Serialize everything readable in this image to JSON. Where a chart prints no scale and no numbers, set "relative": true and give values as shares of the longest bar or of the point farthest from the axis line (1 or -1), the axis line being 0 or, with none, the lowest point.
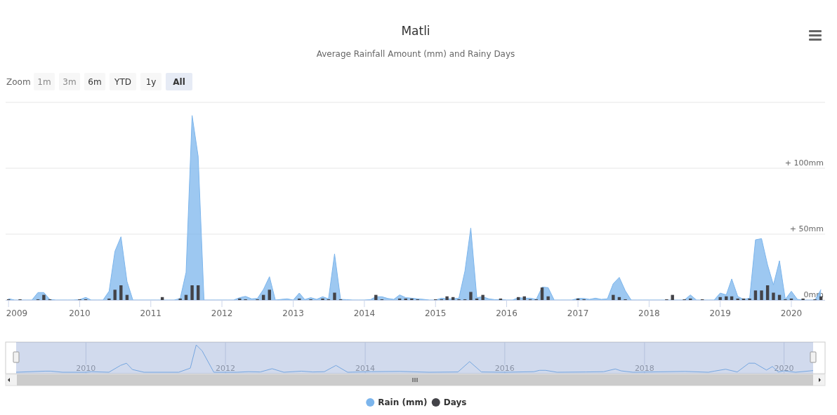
{
  "chart_data": [
    {
      "type": "area",
      "title": "Matli",
      "subtitle": "Average Rainfall Amount (mm) and Rainy Days",
      "annotations": [
        "Zoom",
        "1m",
        "3m",
        "6m",
        "YTD",
        "1y",
        "All"
      ],
      "x": [
        "2009-01",
        "2009-02",
        "2009-03",
        "2009-04",
        "2009-05",
        "2009-06",
        "2009-07",
        "2009-08",
        "2009-09",
        "2009-10",
        "2009-11",
        "2009-12",
        "2010-01",
        "2010-02",
        "2010-03",
        "2010-04",
        "2010-05",
        "2010-06",
        "2010-07",
        "2010-08",
        "2010-09",
        "2010-10",
        "2010-11",
        "2010-12",
        "2011-01",
        "2011-02",
        "2011-03",
        "2011-04",
        "2011-05",
        "2011-06",
        "2011-07",
        "2011-08",
        "2011-09",
        "2011-10",
        "2011-11",
        "2011-12",
        "2012-01",
        "2012-02",
        "2012-03",
        "2012-04",
        "2012-05",
        "2012-06",
        "2012-07",
        "2012-08",
        "2012-09",
        "2012-10",
        "2012-11",
        "2012-12",
        "2013-01",
        "2013-02",
        "2013-03",
        "2013-04",
        "2013-05",
        "2013-06",
        "2013-07",
        "2013-08",
        "2013-09",
        "2013-10",
        "2013-11",
        "2013-12",
        "2014-01",
        "2014-02",
        "2014-03",
        "2014-04",
        "2014-05",
        "2014-06",
        "2014-07",
        "2014-08",
        "2014-09",
        "2014-10",
        "2014-11",
        "2014-12",
        "2015-01",
        "2015-02",
        "2015-03",
        "2015-04",
        "2015-05",
        "2015-06",
        "2015-07",
        "2015-08",
        "2015-09",
        "2015-10",
        "2015-11",
        "2015-12",
        "2016-01",
        "2016-02",
        "2016-03",
        "2016-04",
        "2016-05",
        "2016-06",
        "2016-07",
        "2016-08",
        "2016-09",
        "2016-10",
        "2016-11",
        "2016-12",
        "2017-01",
        "2017-02",
        "2017-03",
        "2017-04",
        "2017-05",
        "2017-06",
        "2017-07",
        "2017-08",
        "2017-09",
        "2017-10",
        "2017-11",
        "2017-12",
        "2018-01",
        "2018-02",
        "2018-03",
        "2018-04",
        "2018-05",
        "2018-06",
        "2018-07",
        "2018-08",
        "2018-09",
        "2018-10",
        "2018-11",
        "2018-12",
        "2019-01",
        "2019-02",
        "2019-03",
        "2019-04",
        "2019-05",
        "2019-06",
        "2019-07",
        "2019-08",
        "2019-09",
        "2019-10",
        "2019-11",
        "2019-12",
        "2020-01",
        "2020-02",
        "2020-03",
        "2020-04",
        "2020-05",
        "2020-06"
      ],
      "series": [
        {
          "name": "Rain (mm)",
          "type": "area",
          "color": "#7cb5ec",
          "values": [
            1,
            0,
            0,
            0,
            0,
            5.7,
            5.7,
            0.4,
            0,
            0,
            0,
            0,
            0.3,
            2,
            0,
            0,
            0,
            6.7,
            37,
            48,
            14,
            0,
            0,
            0,
            0,
            0,
            0,
            0,
            0,
            1.2,
            21,
            140,
            109,
            0,
            0,
            0,
            0,
            0,
            0,
            1.8,
            2.8,
            0.9,
            1.2,
            8,
            17.7,
            0,
            0.5,
            0.9,
            0,
            5.3,
            0.4,
            1.8,
            0.5,
            2.5,
            0.9,
            35,
            0.5,
            0.3,
            0,
            0,
            0,
            0.3,
            2.5,
            2.5,
            1.2,
            0.5,
            3.9,
            1.8,
            1.4,
            0.9,
            0.5,
            0,
            0,
            1.4,
            0.9,
            0.9,
            1.4,
            22,
            54.6,
            1.8,
            2.5,
            0.9,
            0.3,
            0.3,
            0,
            0,
            1.8,
            1.4,
            1.4,
            0.5,
            9.8,
            9.4,
            0,
            0,
            0,
            0,
            1.2,
            1.2,
            0.5,
            1.4,
            0.5,
            0.9,
            12.4,
            17.2,
            7,
            0,
            0,
            0,
            0,
            0,
            0,
            0,
            0,
            0,
            0,
            3.9,
            0,
            0,
            0,
            0,
            5.3,
            3.9,
            16,
            2.7,
            0.5,
            1.4,
            45.7,
            46.6,
            26.6,
            11.5,
            29.8,
            0.5,
            6.7,
            0.5,
            0,
            0,
            0,
            8
          ]
        }
      ],
      "xlim": [
        "2008-12-17",
        "2020-06-22"
      ],
      "xticks": [
        {
          "value": "2009-01",
          "label": "2009"
        },
        {
          "value": "2010-01",
          "label": "2010"
        },
        {
          "value": "2011-01",
          "label": "2011"
        },
        {
          "value": "2012-01",
          "label": "2012"
        },
        {
          "value": "2013-01",
          "label": "2013"
        },
        {
          "value": "2014-01",
          "label": "2014"
        },
        {
          "value": "2015-01",
          "label": "2015"
        },
        {
          "value": "2016-01",
          "label": "2016"
        },
        {
          "value": "2017-01",
          "label": "2017"
        },
        {
          "value": "2018-01",
          "label": "2018"
        },
        {
          "value": "2019-01",
          "label": "2019"
        },
        {
          "value": "2020-01",
          "label": "2020"
        }
      ],
      "ylim": [
        0,
        150
      ],
      "yticks": [
        {
          "value": 0,
          "label": "0mm"
        },
        {
          "value": 50,
          "label": "+ 50mm"
        },
        {
          "value": 100,
          "label": "+ 100mm"
        },
        {
          "value": 150,
          "label": null
        }
      ],
      "grid": "y",
      "legend": "bottom"
    },
    {
      "type": "bar",
      "relative": true,
      "legend": "bottom",
      "x": [
        "2009-01",
        "2009-02",
        "2009-03",
        "2009-04",
        "2009-05",
        "2009-06",
        "2009-07",
        "2009-08",
        "2009-09",
        "2009-10",
        "2009-11",
        "2009-12",
        "2010-01",
        "2010-02",
        "2010-03",
        "2010-04",
        "2010-05",
        "2010-06",
        "2010-07",
        "2010-08",
        "2010-09",
        "2010-10",
        "2010-11",
        "2010-12",
        "2011-01",
        "2011-02",
        "2011-03",
        "2011-04",
        "2011-05",
        "2011-06",
        "2011-07",
        "2011-08",
        "2011-09",
        "2011-10",
        "2011-11",
        "2011-12",
        "2012-01",
        "2012-02",
        "2012-03",
        "2012-04",
        "2012-05",
        "2012-06",
        "2012-07",
        "2012-08",
        "2012-09",
        "2012-10",
        "2012-11",
        "2012-12",
        "2013-01",
        "2013-02",
        "2013-03",
        "2013-04",
        "2013-05",
        "2013-06",
        "2013-07",
        "2013-08",
        "2013-09",
        "2013-10",
        "2013-11",
        "2013-12",
        "2014-01",
        "2014-02",
        "2014-03",
        "2014-04",
        "2014-05",
        "2014-06",
        "2014-07",
        "2014-08",
        "2014-09",
        "2014-10",
        "2014-11",
        "2014-12",
        "2015-01",
        "2015-02",
        "2015-03",
        "2015-04",
        "2015-05",
        "2015-06",
        "2015-07",
        "2015-08",
        "2015-09",
        "2015-10",
        "2015-11",
        "2015-12",
        "2016-01",
        "2016-02",
        "2016-03",
        "2016-04",
        "2016-05",
        "2016-06",
        "2016-07",
        "2016-08",
        "2016-09",
        "2016-10",
        "2016-11",
        "2016-12",
        "2017-01",
        "2017-02",
        "2017-03",
        "2017-04",
        "2017-05",
        "2017-06",
        "2017-07",
        "2017-08",
        "2017-09",
        "2017-10",
        "2017-11",
        "2017-12",
        "2018-01",
        "2018-02",
        "2018-03",
        "2018-04",
        "2018-05",
        "2018-06",
        "2018-07",
        "2018-08",
        "2018-09",
        "2018-10",
        "2018-11",
        "2018-12",
        "2019-01",
        "2019-02",
        "2019-03",
        "2019-04",
        "2019-05",
        "2019-06",
        "2019-07",
        "2019-08",
        "2019-09",
        "2019-10",
        "2019-11",
        "2019-12",
        "2020-01",
        "2020-02",
        "2020-03",
        "2020-04",
        "2020-05",
        "2020-06"
      ],
      "xlim": [
        "2008-12-17",
        "2020-06-22"
      ],
      "series": [
        {
          "name": "Days",
          "color": "#434348",
          "values": [
            0.05,
            0,
            0.05,
            0,
            0,
            0.05,
            0.35,
            0.05,
            0,
            0,
            0,
            0,
            0.05,
            0.05,
            0,
            0,
            0,
            0.1,
            0.7,
            1,
            0.35,
            0,
            0,
            0,
            0,
            0,
            0.2,
            0,
            0,
            0.1,
            0.35,
            1,
            1,
            0,
            0,
            0,
            0,
            0,
            0,
            0.1,
            0.05,
            0,
            0.05,
            0.35,
            0.7,
            0,
            0,
            0,
            0,
            0.1,
            0,
            0.05,
            0,
            0.1,
            0.05,
            0.5,
            0.05,
            0,
            0,
            0,
            0,
            0,
            0.35,
            0.05,
            0,
            0,
            0.1,
            0.1,
            0.1,
            0.05,
            0,
            0,
            0.05,
            0.05,
            0.25,
            0.2,
            0.05,
            0.05,
            0.55,
            0.1,
            0.35,
            0,
            0,
            0.1,
            0,
            0,
            0.2,
            0.25,
            0.05,
            0.05,
            0.85,
            0.25,
            0,
            0,
            0,
            0,
            0.1,
            0.05,
            0,
            0,
            0,
            0,
            0.35,
            0.2,
            0.05,
            0,
            0,
            0,
            0,
            0,
            0,
            0.05,
            0.35,
            0,
            0.05,
            0.1,
            0,
            0.05,
            0,
            0,
            0.2,
            0.25,
            0.25,
            0.1,
            0.1,
            0.1,
            0.65,
            0.65,
            1,
            0.5,
            0.35,
            0.05,
            0.1,
            0,
            0.1,
            0,
            0.05,
            0.25
          ]
        }
      ]
    },
    {
      "type": "line",
      "relative": true,
      "grid": "x",
      "x": [
        "2009-01",
        "2009-06",
        "2009-07",
        "2009-09",
        "2010-01",
        "2010-02",
        "2010-05",
        "2010-07",
        "2010-08",
        "2010-09",
        "2010-11",
        "2011-05",
        "2011-07",
        "2011-08",
        "2011-09",
        "2011-11",
        "2012-03",
        "2012-05",
        "2012-07",
        "2012-09",
        "2012-11",
        "2013-02",
        "2013-04",
        "2013-06",
        "2013-08",
        "2013-10",
        "2014-02",
        "2014-07",
        "2014-12",
        "2015-05",
        "2015-07",
        "2015-09",
        "2016-01",
        "2016-06",
        "2016-07",
        "2016-08",
        "2016-10",
        "2017-03",
        "2017-06",
        "2017-08",
        "2017-09",
        "2017-11",
        "2018-08",
        "2018-12",
        "2019-01",
        "2019-03",
        "2019-05",
        "2019-07",
        "2019-08",
        "2019-10",
        "2019-11",
        "2019-12",
        "2020-01",
        "2020-03",
        "2020-06"
      ],
      "series": [
        {
          "color": "#7cb5ec",
          "values": [
            0,
            0.04,
            0.04,
            0,
            0,
            0.02,
            0,
            0.25,
            0.33,
            0.1,
            0,
            0,
            0.15,
            1,
            0.78,
            0,
            0,
            0.02,
            0.01,
            0.13,
            0,
            0.04,
            0.01,
            0.02,
            0.25,
            0,
            0.02,
            0.03,
            0,
            0.01,
            0.39,
            0.01,
            0,
            0.02,
            0.07,
            0.07,
            0,
            0.01,
            0.02,
            0.12,
            0.05,
            0,
            0.03,
            0,
            0.04,
            0.11,
            0.01,
            0.33,
            0.33,
            0.08,
            0.21,
            0.01,
            0.05,
            0,
            0.06
          ]
        }
      ],
      "xlim": [
        "2009-01",
        "2020-06"
      ],
      "xticks": [
        {
          "value": "2010-01",
          "label": "2010"
        },
        {
          "value": "2012-01",
          "label": "2012"
        },
        {
          "value": "2014-01",
          "label": "2014"
        },
        {
          "value": "2016-01",
          "label": "2016"
        },
        {
          "value": "2018-01",
          "label": "2018"
        },
        {
          "value": "2020-01",
          "label": "2020"
        }
      ]
    }
  ]
}
